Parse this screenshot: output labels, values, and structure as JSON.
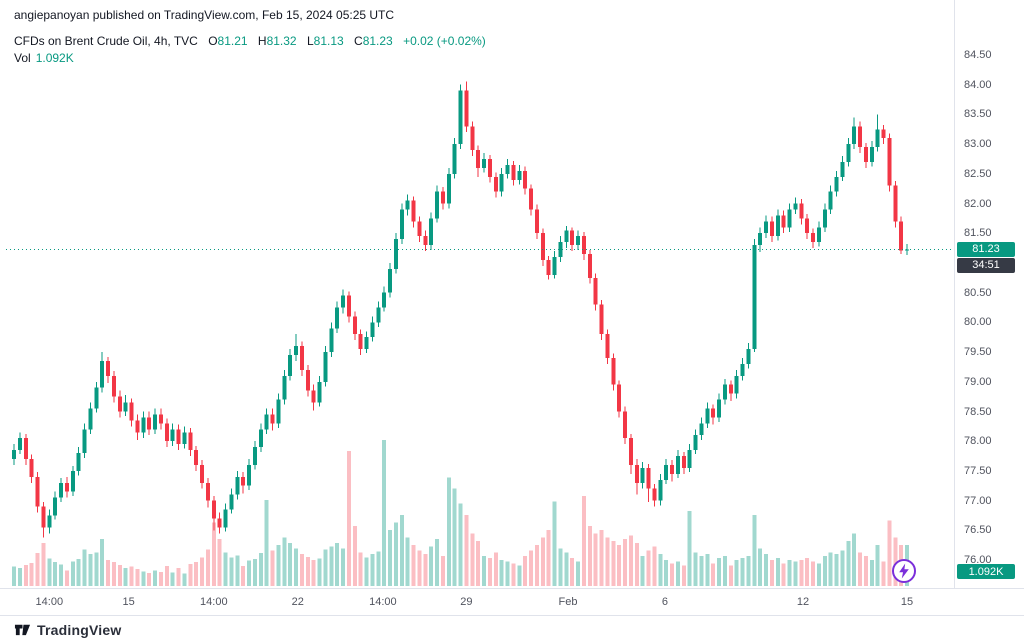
{
  "attribution": "angiepanoyan published on TradingView.com, Feb 15, 2024 05:25 UTC",
  "legend": {
    "title": "CFDs on Brent Crude Oil, 4h, TVC",
    "open_label": "O",
    "open": "81.21",
    "high_label": "H",
    "high": "81.32",
    "low_label": "L",
    "low": "81.13",
    "close_label": "C",
    "close": "81.23",
    "change": "+0.02 (+0.02%)",
    "vol_label": "Vol",
    "vol_value": "1.092K"
  },
  "axis": {
    "price_badge": "81.23",
    "countdown": "34:51",
    "volume_badge": "1.092K"
  },
  "footer": {
    "brand": "TradingView"
  },
  "colors": {
    "up": "#089981",
    "down": "#f23645",
    "vol_up": "rgba(8,153,129,0.38)",
    "vol_down": "rgba(242,54,69,0.32)",
    "flash": "#7b2eda",
    "axis_text": "#50535e"
  },
  "chart_data": {
    "type": "candlestick+volume",
    "title": "CFDs on Brent Crude Oil",
    "interval": "4h",
    "exchange": "TVC",
    "last_price": 81.23,
    "last_volume_label": "1.092K",
    "countdown": "34:51",
    "ylim": [
      76.0,
      84.5
    ],
    "grid": false,
    "price_ticks": [
      "84.50",
      "84.00",
      "83.50",
      "83.00",
      "82.50",
      "82.00",
      "81.50",
      "81.00",
      "80.50",
      "80.00",
      "79.50",
      "79.00",
      "78.50",
      "78.00",
      "77.50",
      "77.00",
      "76.50",
      "76.00"
    ],
    "time_ticks": [
      {
        "label": "14:00",
        "i": 6
      },
      {
        "label": "15",
        "i": 19.5
      },
      {
        "label": "14:00",
        "i": 34
      },
      {
        "label": "22",
        "i": 48.3
      },
      {
        "label": "14:00",
        "i": 62.8
      },
      {
        "label": "29",
        "i": 77
      },
      {
        "label": "Feb",
        "i": 94.3
      },
      {
        "label": "6",
        "i": 110.8
      },
      {
        "label": "12",
        "i": 134.3
      },
      {
        "label": "15",
        "i": 152
      }
    ],
    "volume_scale_max": 4000,
    "candles": [
      [
        77.7,
        77.95,
        77.6,
        77.85,
        520
      ],
      [
        77.85,
        78.15,
        77.78,
        78.05,
        480
      ],
      [
        78.05,
        78.12,
        77.6,
        77.7,
        560
      ],
      [
        77.7,
        77.78,
        77.3,
        77.4,
        610
      ],
      [
        77.4,
        77.48,
        76.8,
        76.9,
        880
      ],
      [
        76.9,
        76.98,
        76.38,
        76.55,
        1150
      ],
      [
        76.55,
        76.85,
        76.45,
        76.75,
        730
      ],
      [
        76.75,
        77.15,
        76.68,
        77.05,
        640
      ],
      [
        77.05,
        77.38,
        76.98,
        77.3,
        580
      ],
      [
        77.3,
        77.4,
        77.05,
        77.15,
        420
      ],
      [
        77.15,
        77.58,
        77.08,
        77.5,
        660
      ],
      [
        77.5,
        77.9,
        77.42,
        77.8,
        720
      ],
      [
        77.8,
        78.3,
        77.72,
        78.2,
        980
      ],
      [
        78.2,
        78.65,
        78.12,
        78.55,
        850
      ],
      [
        78.55,
        79.0,
        78.48,
        78.9,
        900
      ],
      [
        78.9,
        79.5,
        78.82,
        79.35,
        1250
      ],
      [
        79.35,
        79.42,
        78.98,
        79.1,
        700
      ],
      [
        79.1,
        79.18,
        78.65,
        78.75,
        640
      ],
      [
        78.75,
        78.85,
        78.4,
        78.5,
        560
      ],
      [
        78.5,
        78.78,
        78.42,
        78.65,
        480
      ],
      [
        78.65,
        78.72,
        78.25,
        78.35,
        520
      ],
      [
        78.35,
        78.45,
        78.02,
        78.15,
        460
      ],
      [
        78.15,
        78.5,
        78.05,
        78.4,
        390
      ],
      [
        78.4,
        78.5,
        78.1,
        78.2,
        350
      ],
      [
        78.2,
        78.55,
        78.12,
        78.45,
        420
      ],
      [
        78.45,
        78.55,
        78.2,
        78.3,
        380
      ],
      [
        78.3,
        78.38,
        77.9,
        78.0,
        540
      ],
      [
        78.0,
        78.3,
        77.92,
        78.2,
        360
      ],
      [
        78.2,
        78.28,
        77.85,
        77.95,
        480
      ],
      [
        77.95,
        78.25,
        77.88,
        78.15,
        330
      ],
      [
        78.15,
        78.22,
        77.75,
        77.85,
        590
      ],
      [
        77.85,
        77.92,
        77.5,
        77.6,
        640
      ],
      [
        77.6,
        77.68,
        77.2,
        77.3,
        760
      ],
      [
        77.3,
        77.38,
        76.88,
        77.0,
        980
      ],
      [
        77.0,
        77.08,
        76.5,
        76.7,
        1700
      ],
      [
        76.7,
        76.8,
        76.45,
        76.55,
        1250
      ],
      [
        76.55,
        76.95,
        76.48,
        76.85,
        900
      ],
      [
        76.85,
        77.2,
        76.78,
        77.1,
        760
      ],
      [
        77.1,
        77.5,
        77.02,
        77.4,
        820
      ],
      [
        77.4,
        77.48,
        77.12,
        77.25,
        540
      ],
      [
        77.25,
        77.7,
        77.18,
        77.6,
        680
      ],
      [
        77.6,
        78.0,
        77.52,
        77.9,
        720
      ],
      [
        77.9,
        78.3,
        77.82,
        78.2,
        880
      ],
      [
        78.2,
        78.55,
        78.12,
        78.45,
        2300
      ],
      [
        78.45,
        78.55,
        78.18,
        78.3,
        950
      ],
      [
        78.3,
        78.8,
        78.22,
        78.7,
        1100
      ],
      [
        78.7,
        79.2,
        78.62,
        79.1,
        1300
      ],
      [
        79.1,
        79.55,
        79.02,
        79.45,
        1150
      ],
      [
        79.45,
        79.8,
        79.35,
        79.6,
        1000
      ],
      [
        79.6,
        79.68,
        79.1,
        79.2,
        850
      ],
      [
        79.2,
        79.28,
        78.75,
        78.85,
        780
      ],
      [
        78.85,
        78.95,
        78.52,
        78.65,
        690
      ],
      [
        78.65,
        79.1,
        78.58,
        79.0,
        740
      ],
      [
        79.0,
        79.6,
        78.92,
        79.5,
        980
      ],
      [
        79.5,
        80.0,
        79.42,
        79.9,
        1050
      ],
      [
        79.9,
        80.35,
        79.82,
        80.25,
        1150
      ],
      [
        80.25,
        80.55,
        80.15,
        80.45,
        1000
      ],
      [
        80.45,
        80.52,
        80.0,
        80.1,
        3600
      ],
      [
        80.1,
        80.18,
        79.7,
        79.8,
        1600
      ],
      [
        79.8,
        79.88,
        79.45,
        79.55,
        900
      ],
      [
        79.55,
        79.85,
        79.48,
        79.75,
        760
      ],
      [
        79.75,
        80.1,
        79.68,
        80.0,
        850
      ],
      [
        80.0,
        80.35,
        79.92,
        80.25,
        920
      ],
      [
        80.25,
        80.6,
        80.18,
        80.5,
        3900
      ],
      [
        80.5,
        81.0,
        80.42,
        80.9,
        1500
      ],
      [
        80.9,
        81.5,
        80.82,
        81.4,
        1700
      ],
      [
        81.4,
        82.0,
        81.32,
        81.9,
        1900
      ],
      [
        81.9,
        82.15,
        81.8,
        82.05,
        1300
      ],
      [
        82.05,
        82.12,
        81.6,
        81.7,
        1100
      ],
      [
        81.7,
        81.78,
        81.35,
        81.45,
        950
      ],
      [
        81.45,
        81.55,
        81.2,
        81.3,
        850
      ],
      [
        81.3,
        81.85,
        81.22,
        81.75,
        1050
      ],
      [
        81.75,
        82.3,
        81.68,
        82.2,
        1250
      ],
      [
        82.2,
        82.28,
        81.9,
        82.0,
        800
      ],
      [
        82.0,
        82.6,
        81.92,
        82.5,
        2900
      ],
      [
        82.5,
        83.1,
        82.42,
        83.0,
        2600
      ],
      [
        83.0,
        84.0,
        82.92,
        83.9,
        2200
      ],
      [
        83.9,
        84.05,
        83.2,
        83.3,
        1900
      ],
      [
        83.3,
        83.38,
        82.8,
        82.9,
        1400
      ],
      [
        82.9,
        82.98,
        82.45,
        82.6,
        1200
      ],
      [
        82.6,
        82.85,
        82.52,
        82.75,
        800
      ],
      [
        82.75,
        82.82,
        82.35,
        82.45,
        750
      ],
      [
        82.45,
        82.52,
        82.1,
        82.2,
        900
      ],
      [
        82.2,
        82.6,
        82.12,
        82.5,
        700
      ],
      [
        82.5,
        82.75,
        82.42,
        82.65,
        650
      ],
      [
        82.65,
        82.72,
        82.3,
        82.4,
        600
      ],
      [
        82.4,
        82.65,
        82.32,
        82.55,
        550
      ],
      [
        82.55,
        82.62,
        82.15,
        82.25,
        800
      ],
      [
        82.25,
        82.32,
        81.8,
        81.9,
        950
      ],
      [
        81.9,
        81.98,
        81.4,
        81.5,
        1100
      ],
      [
        81.5,
        81.58,
        80.95,
        81.05,
        1300
      ],
      [
        81.05,
        81.12,
        80.72,
        80.8,
        1500
      ],
      [
        80.8,
        81.2,
        80.74,
        81.1,
        2250
      ],
      [
        81.1,
        81.45,
        81.02,
        81.35,
        1000
      ],
      [
        81.35,
        81.62,
        81.25,
        81.55,
        900
      ],
      [
        81.55,
        81.6,
        81.2,
        81.3,
        750
      ],
      [
        81.3,
        81.55,
        81.22,
        81.45,
        650
      ],
      [
        81.45,
        81.52,
        81.05,
        81.15,
        2400
      ],
      [
        81.15,
        81.22,
        80.65,
        80.75,
        1600
      ],
      [
        80.75,
        80.82,
        80.2,
        80.3,
        1400
      ],
      [
        80.3,
        80.38,
        79.7,
        79.8,
        1500
      ],
      [
        79.8,
        79.88,
        79.3,
        79.4,
        1300
      ],
      [
        79.4,
        79.48,
        78.85,
        78.95,
        1200
      ],
      [
        78.95,
        79.02,
        78.4,
        78.5,
        1100
      ],
      [
        78.5,
        78.58,
        77.95,
        78.05,
        1250
      ],
      [
        78.05,
        78.12,
        77.45,
        77.6,
        1350
      ],
      [
        77.6,
        77.7,
        77.1,
        77.3,
        1150
      ],
      [
        77.3,
        77.65,
        77.2,
        77.55,
        800
      ],
      [
        77.55,
        77.62,
        76.98,
        77.2,
        950
      ],
      [
        77.2,
        77.28,
        76.9,
        77.0,
        1050
      ],
      [
        77.0,
        77.45,
        76.92,
        77.35,
        850
      ],
      [
        77.35,
        77.7,
        77.28,
        77.6,
        700
      ],
      [
        77.6,
        77.68,
        77.32,
        77.45,
        600
      ],
      [
        77.45,
        77.85,
        77.38,
        77.75,
        650
      ],
      [
        77.75,
        77.82,
        77.45,
        77.55,
        550
      ],
      [
        77.55,
        77.95,
        77.48,
        77.85,
        2000
      ],
      [
        77.85,
        78.2,
        77.78,
        78.1,
        900
      ],
      [
        78.1,
        78.4,
        78.02,
        78.3,
        800
      ],
      [
        78.3,
        78.65,
        78.22,
        78.55,
        850
      ],
      [
        78.55,
        78.62,
        78.28,
        78.4,
        600
      ],
      [
        78.4,
        78.8,
        78.32,
        78.7,
        750
      ],
      [
        78.7,
        79.05,
        78.62,
        78.95,
        800
      ],
      [
        78.95,
        79.02,
        78.68,
        78.8,
        550
      ],
      [
        78.8,
        79.2,
        78.72,
        79.1,
        700
      ],
      [
        79.1,
        79.4,
        79.02,
        79.3,
        750
      ],
      [
        79.3,
        79.65,
        79.22,
        79.55,
        800
      ],
      [
        79.55,
        81.4,
        79.5,
        81.3,
        1900
      ],
      [
        81.3,
        81.6,
        81.18,
        81.5,
        1000
      ],
      [
        81.5,
        81.8,
        81.42,
        81.7,
        850
      ],
      [
        81.7,
        81.78,
        81.35,
        81.45,
        700
      ],
      [
        81.45,
        81.9,
        81.38,
        81.8,
        750
      ],
      [
        81.8,
        81.88,
        81.5,
        81.6,
        600
      ],
      [
        81.6,
        82.0,
        81.52,
        81.9,
        700
      ],
      [
        81.9,
        82.1,
        81.82,
        82.0,
        650
      ],
      [
        82.0,
        82.08,
        81.65,
        81.75,
        700
      ],
      [
        81.75,
        81.82,
        81.4,
        81.5,
        750
      ],
      [
        81.5,
        81.58,
        81.25,
        81.35,
        650
      ],
      [
        81.35,
        81.7,
        81.28,
        81.6,
        600
      ],
      [
        81.6,
        82.0,
        81.52,
        81.9,
        800
      ],
      [
        81.9,
        82.3,
        81.82,
        82.2,
        900
      ],
      [
        82.2,
        82.55,
        82.12,
        82.45,
        850
      ],
      [
        82.45,
        82.8,
        82.38,
        82.7,
        950
      ],
      [
        82.7,
        83.1,
        82.62,
        83.0,
        1200
      ],
      [
        83.0,
        83.45,
        82.92,
        83.3,
        1400
      ],
      [
        83.3,
        83.38,
        82.85,
        82.95,
        900
      ],
      [
        82.95,
        83.02,
        82.6,
        82.7,
        800
      ],
      [
        82.7,
        83.05,
        82.62,
        82.95,
        700
      ],
      [
        82.95,
        83.5,
        82.88,
        83.25,
        1100
      ],
      [
        83.25,
        83.32,
        83.0,
        83.1,
        650
      ],
      [
        83.1,
        83.18,
        82.2,
        82.3,
        1750
      ],
      [
        82.3,
        82.38,
        81.6,
        81.7,
        1300
      ],
      [
        81.7,
        81.78,
        81.15,
        81.21,
        1100
      ],
      [
        81.21,
        81.32,
        81.13,
        81.23,
        1092
      ]
    ]
  }
}
